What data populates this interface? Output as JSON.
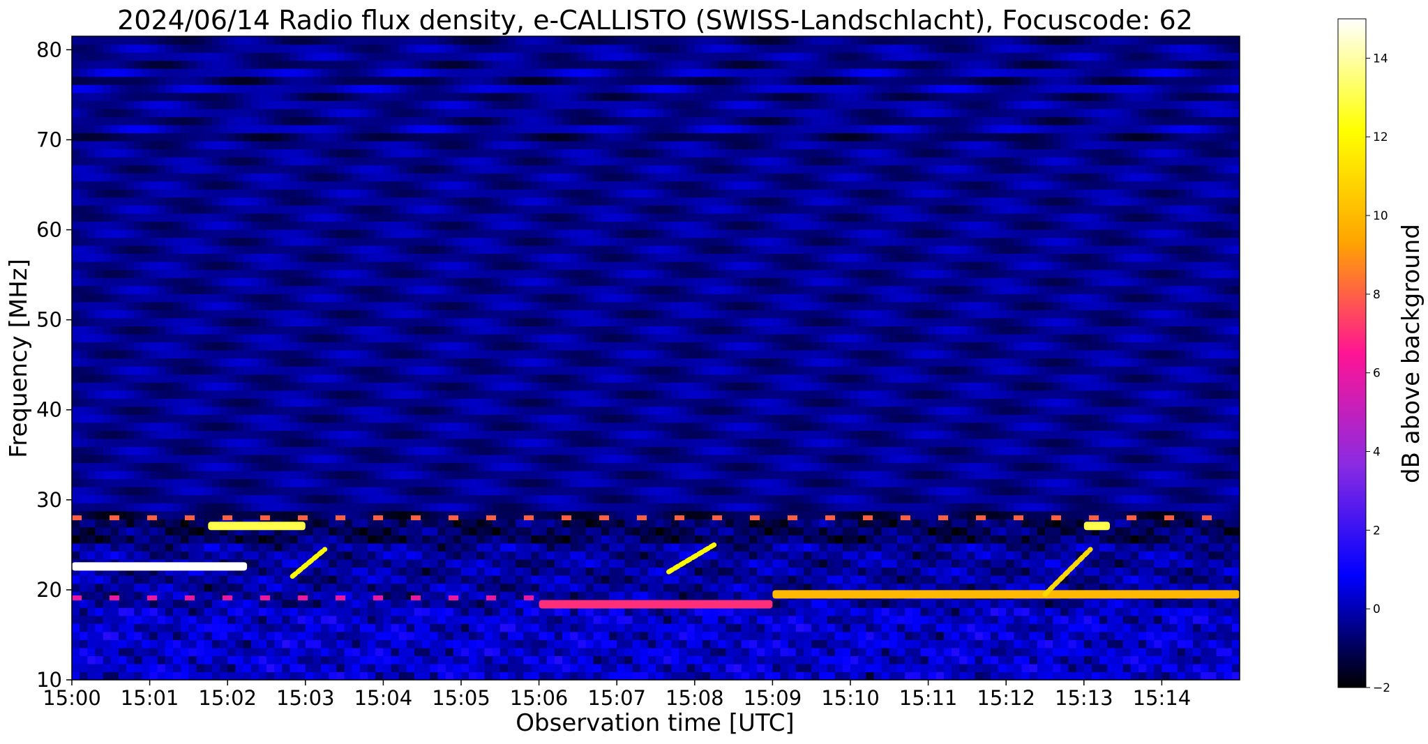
{
  "chart_data": {
    "type": "heatmap",
    "title": "2024/06/14  Radio flux density, e-CALLISTO (SWISS-Landschlacht), Focuscode: 62",
    "xlabel": "Observation time [UTC]",
    "ylabel": "Frequency [MHz]",
    "x_ticks": [
      "15:00",
      "15:01",
      "15:02",
      "15:03",
      "15:04",
      "15:05",
      "15:06",
      "15:07",
      "15:08",
      "15:09",
      "15:10",
      "15:11",
      "15:12",
      "15:13",
      "15:14"
    ],
    "x_range": [
      "15:00",
      "15:15"
    ],
    "y_ticks": [
      10,
      20,
      30,
      40,
      50,
      60,
      70,
      80
    ],
    "ylim": [
      10,
      81.5
    ],
    "colorbar": {
      "label": "dB above background",
      "ticks": [
        -2,
        0,
        2,
        4,
        6,
        8,
        10,
        12,
        14
      ],
      "range": [
        -2,
        15
      ],
      "colormap": "gnuplot2",
      "colors": [
        "#000000",
        "#0000ff",
        "#8a2be2",
        "#ff1493",
        "#ffa500",
        "#ffff00",
        "#ffffff"
      ]
    },
    "features": [
      {
        "label": "horizontal band",
        "freq_mhz": 22.6,
        "t_start": "15:00",
        "t_end": "15:02:15",
        "db": 15
      },
      {
        "label": "horizontal band",
        "freq_mhz": 27.1,
        "t_start": "15:01:45",
        "t_end": "15:03",
        "db": 13
      },
      {
        "label": "horizontal band",
        "freq_mhz": 27.1,
        "t_start": "15:13",
        "t_end": "15:13:20",
        "db": 13
      },
      {
        "label": "horizontal band",
        "freq_mhz": 19.5,
        "t_start": "15:09",
        "t_end": "15:15",
        "db": 10
      },
      {
        "label": "horizontal band",
        "freq_mhz": 18.4,
        "t_start": "15:06",
        "t_end": "15:09",
        "db": 7
      },
      {
        "label": "drifting burst",
        "t_start": "15:02:50",
        "t_end": "15:03:15",
        "f_start": 21.5,
        "f_end": 24.5,
        "db": 12
      },
      {
        "label": "drifting burst",
        "t_start": "15:07:40",
        "t_end": "15:08:15",
        "f_start": 22,
        "f_end": 25,
        "db": 12
      },
      {
        "label": "drifting burst",
        "t_start": "15:12:30",
        "t_end": "15:13:05",
        "f_start": 19.5,
        "f_end": 24.5,
        "db": 11
      },
      {
        "label": "dashed band",
        "freq_mhz": 28.0,
        "t_start": "15:00",
        "t_end": "15:15",
        "db": 8
      },
      {
        "label": "dashed band",
        "freq_mhz": 19.1,
        "t_start": "15:00",
        "t_end": "15:06",
        "db": 6
      }
    ]
  }
}
